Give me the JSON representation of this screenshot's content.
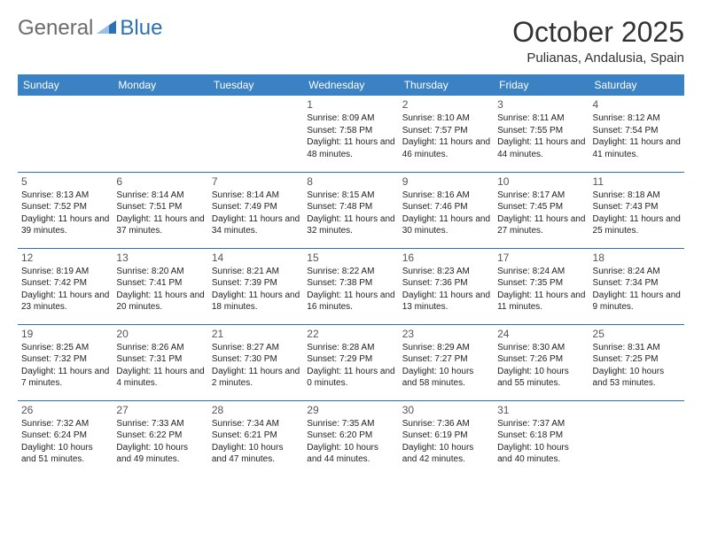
{
  "logo": {
    "part1": "General",
    "part2": "Blue"
  },
  "title": "October 2025",
  "location": "Pulianas, Andalusia, Spain",
  "header_bg": "#3b82c4",
  "header_fg": "#ffffff",
  "border_color": "#2b71b8",
  "weekdays": [
    "Sunday",
    "Monday",
    "Tuesday",
    "Wednesday",
    "Thursday",
    "Friday",
    "Saturday"
  ],
  "weeks": [
    [
      null,
      null,
      null,
      {
        "n": "1",
        "sr": "8:09 AM",
        "ss": "7:58 PM",
        "dl": "11 hours and 48 minutes."
      },
      {
        "n": "2",
        "sr": "8:10 AM",
        "ss": "7:57 PM",
        "dl": "11 hours and 46 minutes."
      },
      {
        "n": "3",
        "sr": "8:11 AM",
        "ss": "7:55 PM",
        "dl": "11 hours and 44 minutes."
      },
      {
        "n": "4",
        "sr": "8:12 AM",
        "ss": "7:54 PM",
        "dl": "11 hours and 41 minutes."
      }
    ],
    [
      {
        "n": "5",
        "sr": "8:13 AM",
        "ss": "7:52 PM",
        "dl": "11 hours and 39 minutes."
      },
      {
        "n": "6",
        "sr": "8:14 AM",
        "ss": "7:51 PM",
        "dl": "11 hours and 37 minutes."
      },
      {
        "n": "7",
        "sr": "8:14 AM",
        "ss": "7:49 PM",
        "dl": "11 hours and 34 minutes."
      },
      {
        "n": "8",
        "sr": "8:15 AM",
        "ss": "7:48 PM",
        "dl": "11 hours and 32 minutes."
      },
      {
        "n": "9",
        "sr": "8:16 AM",
        "ss": "7:46 PM",
        "dl": "11 hours and 30 minutes."
      },
      {
        "n": "10",
        "sr": "8:17 AM",
        "ss": "7:45 PM",
        "dl": "11 hours and 27 minutes."
      },
      {
        "n": "11",
        "sr": "8:18 AM",
        "ss": "7:43 PM",
        "dl": "11 hours and 25 minutes."
      }
    ],
    [
      {
        "n": "12",
        "sr": "8:19 AM",
        "ss": "7:42 PM",
        "dl": "11 hours and 23 minutes."
      },
      {
        "n": "13",
        "sr": "8:20 AM",
        "ss": "7:41 PM",
        "dl": "11 hours and 20 minutes."
      },
      {
        "n": "14",
        "sr": "8:21 AM",
        "ss": "7:39 PM",
        "dl": "11 hours and 18 minutes."
      },
      {
        "n": "15",
        "sr": "8:22 AM",
        "ss": "7:38 PM",
        "dl": "11 hours and 16 minutes."
      },
      {
        "n": "16",
        "sr": "8:23 AM",
        "ss": "7:36 PM",
        "dl": "11 hours and 13 minutes."
      },
      {
        "n": "17",
        "sr": "8:24 AM",
        "ss": "7:35 PM",
        "dl": "11 hours and 11 minutes."
      },
      {
        "n": "18",
        "sr": "8:24 AM",
        "ss": "7:34 PM",
        "dl": "11 hours and 9 minutes."
      }
    ],
    [
      {
        "n": "19",
        "sr": "8:25 AM",
        "ss": "7:32 PM",
        "dl": "11 hours and 7 minutes."
      },
      {
        "n": "20",
        "sr": "8:26 AM",
        "ss": "7:31 PM",
        "dl": "11 hours and 4 minutes."
      },
      {
        "n": "21",
        "sr": "8:27 AM",
        "ss": "7:30 PM",
        "dl": "11 hours and 2 minutes."
      },
      {
        "n": "22",
        "sr": "8:28 AM",
        "ss": "7:29 PM",
        "dl": "11 hours and 0 minutes."
      },
      {
        "n": "23",
        "sr": "8:29 AM",
        "ss": "7:27 PM",
        "dl": "10 hours and 58 minutes."
      },
      {
        "n": "24",
        "sr": "8:30 AM",
        "ss": "7:26 PM",
        "dl": "10 hours and 55 minutes."
      },
      {
        "n": "25",
        "sr": "8:31 AM",
        "ss": "7:25 PM",
        "dl": "10 hours and 53 minutes."
      }
    ],
    [
      {
        "n": "26",
        "sr": "7:32 AM",
        "ss": "6:24 PM",
        "dl": "10 hours and 51 minutes."
      },
      {
        "n": "27",
        "sr": "7:33 AM",
        "ss": "6:22 PM",
        "dl": "10 hours and 49 minutes."
      },
      {
        "n": "28",
        "sr": "7:34 AM",
        "ss": "6:21 PM",
        "dl": "10 hours and 47 minutes."
      },
      {
        "n": "29",
        "sr": "7:35 AM",
        "ss": "6:20 PM",
        "dl": "10 hours and 44 minutes."
      },
      {
        "n": "30",
        "sr": "7:36 AM",
        "ss": "6:19 PM",
        "dl": "10 hours and 42 minutes."
      },
      {
        "n": "31",
        "sr": "7:37 AM",
        "ss": "6:18 PM",
        "dl": "10 hours and 40 minutes."
      },
      null
    ]
  ],
  "labels": {
    "sunrise": "Sunrise:",
    "sunset": "Sunset:",
    "daylight": "Daylight:"
  }
}
